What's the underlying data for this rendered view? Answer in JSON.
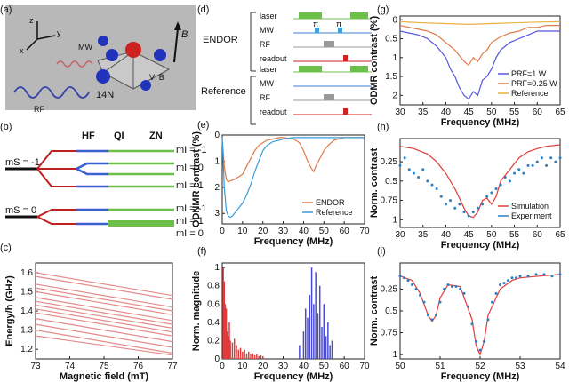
{
  "panel_labels": {
    "a": "(a)",
    "b": "(b)",
    "c": "(c)",
    "d": "(d)",
    "e": "(e)",
    "f": "(f)",
    "g": "(g)",
    "h": "(h)",
    "i": "(i)"
  },
  "panel_a": {
    "z": "z",
    "y": "y",
    "x": "x",
    "mw": "MW",
    "rf": "RF",
    "n14": "14N",
    "vb": "V⁻B",
    "b": "B"
  },
  "panel_b": {
    "col_hf": "HF",
    "col_qi": "QI",
    "col_zn": "ZN",
    "ms_minus": "mS = -1",
    "ms_zero": "mS = 0",
    "mi_top": [
      "mI = -1",
      "mI = 0",
      "mI = 1"
    ],
    "mi_bottom": [
      "mI = -1",
      "mI = 1",
      "mI = 0"
    ]
  },
  "panel_d": {
    "enrod": "ENDOR",
    "reference": "Reference",
    "rows": [
      "laser",
      "MW",
      "RF",
      "readout"
    ],
    "pi": "π"
  },
  "chart_data": [
    {
      "id": "c",
      "type": "line",
      "xlabel": "Magnetic field (mT)",
      "ylabel": "Energy/h (GHz)",
      "xlim": [
        73,
        77
      ],
      "ylim": [
        1.15,
        1.65
      ],
      "xticks": [
        73,
        74,
        75,
        76,
        77
      ],
      "yticks": [
        1.2,
        1.3,
        1.4,
        1.5,
        1.6
      ],
      "series": [
        {
          "x": [
            73,
            77
          ],
          "y": [
            1.6,
            1.48
          ]
        },
        {
          "x": [
            73,
            77
          ],
          "y": [
            1.58,
            1.46
          ]
        },
        {
          "x": [
            73,
            77
          ],
          "y": [
            1.54,
            1.42
          ]
        },
        {
          "x": [
            73,
            77
          ],
          "y": [
            1.52,
            1.4
          ]
        },
        {
          "x": [
            73,
            77
          ],
          "y": [
            1.5,
            1.38
          ]
        },
        {
          "x": [
            73,
            77
          ],
          "y": [
            1.47,
            1.35
          ]
        },
        {
          "x": [
            73,
            77
          ],
          "y": [
            1.45,
            1.33
          ]
        },
        {
          "x": [
            73,
            77
          ],
          "y": [
            1.43,
            1.31
          ]
        },
        {
          "x": [
            73,
            77
          ],
          "y": [
            1.41,
            1.29
          ]
        },
        {
          "x": [
            73,
            77
          ],
          "y": [
            1.39,
            1.27
          ]
        },
        {
          "x": [
            73,
            77
          ],
          "y": [
            1.36,
            1.24
          ]
        },
        {
          "x": [
            73,
            77
          ],
          "y": [
            1.33,
            1.21
          ]
        },
        {
          "x": [
            73,
            77
          ],
          "y": [
            1.3,
            1.18
          ]
        },
        {
          "x": [
            73,
            77
          ],
          "y": [
            1.27,
            1.17
          ]
        }
      ]
    },
    {
      "id": "e",
      "type": "line",
      "xlabel": "Frequency (MHz)",
      "ylabel": "ODNMR contrast (%)",
      "xlim": [
        0,
        70
      ],
      "ylim": [
        0,
        3.4
      ],
      "inverted": true,
      "xticks": [
        0,
        10,
        20,
        30,
        40,
        50,
        60,
        70
      ],
      "yticks": [
        0,
        1,
        2,
        3
      ],
      "series": [
        {
          "name": "ENDOR",
          "color": "#e07a4a",
          "x": [
            0,
            1,
            2,
            3,
            4,
            6,
            8,
            10,
            12,
            14,
            16,
            18,
            20,
            22,
            25,
            28,
            30,
            35,
            38,
            40,
            42,
            44,
            45,
            46,
            48,
            50,
            52,
            55,
            60,
            65,
            70
          ],
          "y": [
            0.1,
            1.2,
            1.7,
            1.8,
            1.75,
            1.7,
            1.6,
            1.5,
            1.2,
            0.9,
            0.6,
            0.4,
            0.3,
            0.2,
            0.15,
            0.1,
            0.1,
            0.15,
            0.3,
            0.6,
            1.0,
            1.3,
            1.4,
            1.2,
            0.9,
            0.6,
            0.4,
            0.2,
            0.1,
            0.1,
            0.1
          ]
        },
        {
          "name": "Reference",
          "color": "#3a9ad9",
          "x": [
            0,
            1,
            2,
            3,
            4,
            5,
            6,
            8,
            10,
            12,
            14,
            16,
            18,
            20,
            22,
            25,
            28,
            30,
            35,
            40,
            45,
            50,
            55,
            60,
            65,
            70
          ],
          "y": [
            0.1,
            2.0,
            2.9,
            3.1,
            3.15,
            3.1,
            3.0,
            2.8,
            2.6,
            2.3,
            1.9,
            1.4,
            1.0,
            0.6,
            0.4,
            0.25,
            0.2,
            0.15,
            0.1,
            0.1,
            0.1,
            0.1,
            0.1,
            0.1,
            0.1,
            0.1
          ]
        }
      ],
      "legend": [
        "ENDOR",
        "Reference"
      ]
    },
    {
      "id": "f",
      "type": "bar",
      "xlabel": "Frequency (MHz)",
      "ylabel": "Norm. magnitude",
      "xlim": [
        0,
        70
      ],
      "ylim": [
        0,
        1.05
      ],
      "xticks": [
        0,
        10,
        20,
        30,
        40,
        50,
        60,
        70
      ],
      "yticks": [
        0,
        0.2,
        0.4,
        0.6,
        0.8,
        1
      ],
      "series": [
        {
          "name": "low",
          "color": "#e23b3b",
          "x": [
            0.5,
            1,
            1.5,
            2,
            2.5,
            3,
            3.5,
            4,
            5,
            6,
            7,
            8,
            9,
            10,
            11,
            12,
            13,
            14,
            15,
            16,
            17,
            18,
            19,
            20
          ],
          "y": [
            1.0,
            0.85,
            0.6,
            0.55,
            0.3,
            0.25,
            0.4,
            0.2,
            0.18,
            0.22,
            0.15,
            0.1,
            0.12,
            0.08,
            0.1,
            0.06,
            0.08,
            0.05,
            0.06,
            0.04,
            0.05,
            0.03,
            0.04,
            0.03
          ]
        },
        {
          "name": "high",
          "color": "#4a4ad0",
          "x": [
            38,
            40,
            41,
            42,
            43,
            44,
            45,
            46,
            47,
            48,
            49,
            50,
            51,
            52,
            53,
            54
          ],
          "y": [
            0.15,
            0.3,
            0.55,
            0.45,
            0.7,
            1.0,
            0.6,
            0.95,
            0.5,
            0.8,
            0.35,
            0.6,
            0.25,
            0.4,
            0.15,
            0.2
          ]
        }
      ]
    },
    {
      "id": "g",
      "type": "line",
      "xlabel": "Frequency (MHz)",
      "ylabel": "ODMR contrast (%)",
      "xlim": [
        30,
        65
      ],
      "ylim": [
        -0.1,
        2.25
      ],
      "inverted": true,
      "xticks": [
        30,
        35,
        40,
        45,
        50,
        55,
        60,
        65
      ],
      "yticks": [
        0,
        0.5,
        1,
        1.5,
        2
      ],
      "series": [
        {
          "name": "PRF=1 W",
          "color": "#5555dd",
          "x": [
            30,
            32,
            34,
            36,
            38,
            40,
            41,
            42,
            43,
            44,
            45,
            46,
            47,
            48,
            49,
            50,
            51,
            52,
            53,
            54,
            56,
            58,
            60,
            62,
            65
          ],
          "y": [
            0.3,
            0.35,
            0.4,
            0.5,
            0.7,
            1.0,
            1.3,
            1.5,
            1.8,
            2.0,
            2.1,
            1.9,
            2.0,
            1.6,
            1.5,
            1.3,
            1.0,
            0.8,
            0.7,
            0.6,
            0.5,
            0.4,
            0.3,
            0.3,
            0.3
          ]
        },
        {
          "name": "PRF=0.25 W",
          "color": "#e07a4a",
          "x": [
            30,
            32,
            34,
            36,
            38,
            40,
            42,
            43,
            44,
            45,
            46,
            47,
            48,
            49,
            50,
            52,
            54,
            56,
            58,
            60,
            62,
            65
          ],
          "y": [
            0.15,
            0.2,
            0.25,
            0.3,
            0.4,
            0.6,
            0.8,
            0.95,
            1.1,
            1.2,
            1.0,
            1.1,
            0.9,
            0.8,
            0.6,
            0.45,
            0.35,
            0.3,
            0.2,
            0.2,
            0.15,
            0.15
          ]
        },
        {
          "name": "Reference",
          "color": "#e8b040",
          "x": [
            30,
            35,
            40,
            45,
            50,
            55,
            60,
            65
          ],
          "y": [
            0.05,
            0.08,
            0.1,
            0.12,
            0.1,
            0.08,
            0.06,
            0.05
          ]
        }
      ],
      "legend": [
        "PRF=1 W",
        "PRF=0.25 W",
        "Reference"
      ]
    },
    {
      "id": "h",
      "type": "scatter",
      "xlabel": "Frequency (MHz)",
      "ylabel": "Norm. contrast",
      "xlim": [
        30,
        65
      ],
      "ylim": [
        -0.05,
        1.1
      ],
      "inverted": true,
      "xticks": [
        30,
        35,
        40,
        45,
        50,
        55,
        60,
        65
      ],
      "yticks": [
        0.25,
        0.5,
        0.75,
        1
      ],
      "series": [
        {
          "name": "Simulation",
          "color": "#e23b3b",
          "x": [
            30,
            33,
            36,
            38,
            40,
            42,
            44,
            45,
            46,
            47,
            48,
            49,
            50,
            51,
            52,
            54,
            56,
            58,
            60,
            62,
            65
          ],
          "y": [
            0.05,
            0.08,
            0.15,
            0.25,
            0.4,
            0.6,
            0.85,
            0.95,
            0.97,
            0.9,
            0.75,
            0.72,
            0.8,
            0.7,
            0.5,
            0.35,
            0.2,
            0.12,
            0.08,
            0.05,
            0.03
          ]
        },
        {
          "name": "Experiment",
          "color": "#2a7fc4",
          "x": [
            30,
            31,
            32,
            33,
            34,
            35,
            36,
            37,
            38,
            39,
            40,
            41,
            42,
            43,
            44,
            45,
            46,
            47,
            48,
            49,
            50,
            51,
            52,
            53,
            54,
            55,
            56,
            57,
            58,
            59,
            60,
            61,
            62,
            63,
            64,
            65
          ],
          "y": [
            0.3,
            0.2,
            0.35,
            0.4,
            0.45,
            0.35,
            0.5,
            0.55,
            0.6,
            0.7,
            0.8,
            0.75,
            0.85,
            0.8,
            0.9,
            0.95,
            0.9,
            0.85,
            0.8,
            0.7,
            0.65,
            0.6,
            0.55,
            0.45,
            0.5,
            0.4,
            0.35,
            0.4,
            0.3,
            0.3,
            0.25,
            0.2,
            0.3,
            0.2,
            0.25,
            0.2
          ]
        }
      ],
      "legend": [
        "Simulation",
        "Experiment"
      ]
    },
    {
      "id": "i",
      "type": "scatter",
      "xlabel": "Frequency (MHz)",
      "ylabel": "Norm. contrast",
      "xlim": [
        50,
        54
      ],
      "ylim": [
        -0.05,
        1.05
      ],
      "inverted": true,
      "xticks": [
        50,
        51,
        52,
        53,
        54
      ],
      "yticks": [
        0.25,
        0.5,
        0.75,
        1
      ],
      "series": [
        {
          "name": "fit",
          "color": "#e23b3b",
          "x": [
            50,
            50.3,
            50.5,
            50.7,
            50.8,
            50.9,
            51.0,
            51.2,
            51.5,
            51.8,
            51.9,
            52.0,
            52.1,
            52.2,
            52.5,
            52.8,
            53,
            53.5,
            54
          ],
          "y": [
            0.1,
            0.15,
            0.3,
            0.55,
            0.62,
            0.55,
            0.35,
            0.2,
            0.22,
            0.6,
            0.9,
            1.0,
            0.85,
            0.55,
            0.25,
            0.15,
            0.12,
            0.1,
            0.08
          ]
        },
        {
          "name": "data",
          "color": "#2a7fc4",
          "x": [
            50,
            50.1,
            50.2,
            50.3,
            50.4,
            50.5,
            50.6,
            50.7,
            50.8,
            50.9,
            51.0,
            51.1,
            51.2,
            51.3,
            51.4,
            51.5,
            51.6,
            51.7,
            51.8,
            51.9,
            52.0,
            52.1,
            52.2,
            52.3,
            52.4,
            52.5,
            52.6,
            52.7,
            52.8,
            52.9,
            53,
            53.2,
            53.4,
            53.6,
            53.8,
            54
          ],
          "y": [
            0.1,
            0.12,
            0.15,
            0.2,
            0.25,
            0.32,
            0.4,
            0.55,
            0.6,
            0.55,
            0.4,
            0.25,
            0.2,
            0.22,
            0.22,
            0.25,
            0.3,
            0.45,
            0.65,
            0.85,
            0.95,
            0.85,
            0.6,
            0.4,
            0.3,
            0.2,
            0.18,
            0.15,
            0.12,
            0.12,
            0.1,
            0.1,
            0.08,
            0.08,
            0.1,
            0.08
          ]
        }
      ]
    }
  ]
}
